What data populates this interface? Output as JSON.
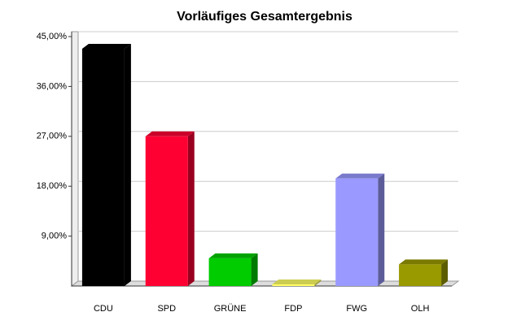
{
  "chart_data": {
    "type": "bar3d",
    "title": "Vorläufiges Gesamtergebnis",
    "categories": [
      "CDU",
      "SPD",
      "GRÜNE",
      "FDP",
      "FWG",
      "OLH"
    ],
    "values": [
      42.8,
      27.0,
      5.0,
      0.3,
      19.4,
      3.9
    ],
    "colors": [
      "#000000",
      "#ff0033",
      "#00cc00",
      "#ffff66",
      "#9999ff",
      "#999900"
    ],
    "ylim": [
      0,
      45
    ],
    "yticks": [
      {
        "value": 9,
        "label": "9,00%"
      },
      {
        "value": 18,
        "label": "18,00%"
      },
      {
        "value": 27,
        "label": "27,00%"
      },
      {
        "value": 36,
        "label": "36,00%"
      },
      {
        "value": 45,
        "label": "45,00%"
      }
    ],
    "grid": true
  }
}
